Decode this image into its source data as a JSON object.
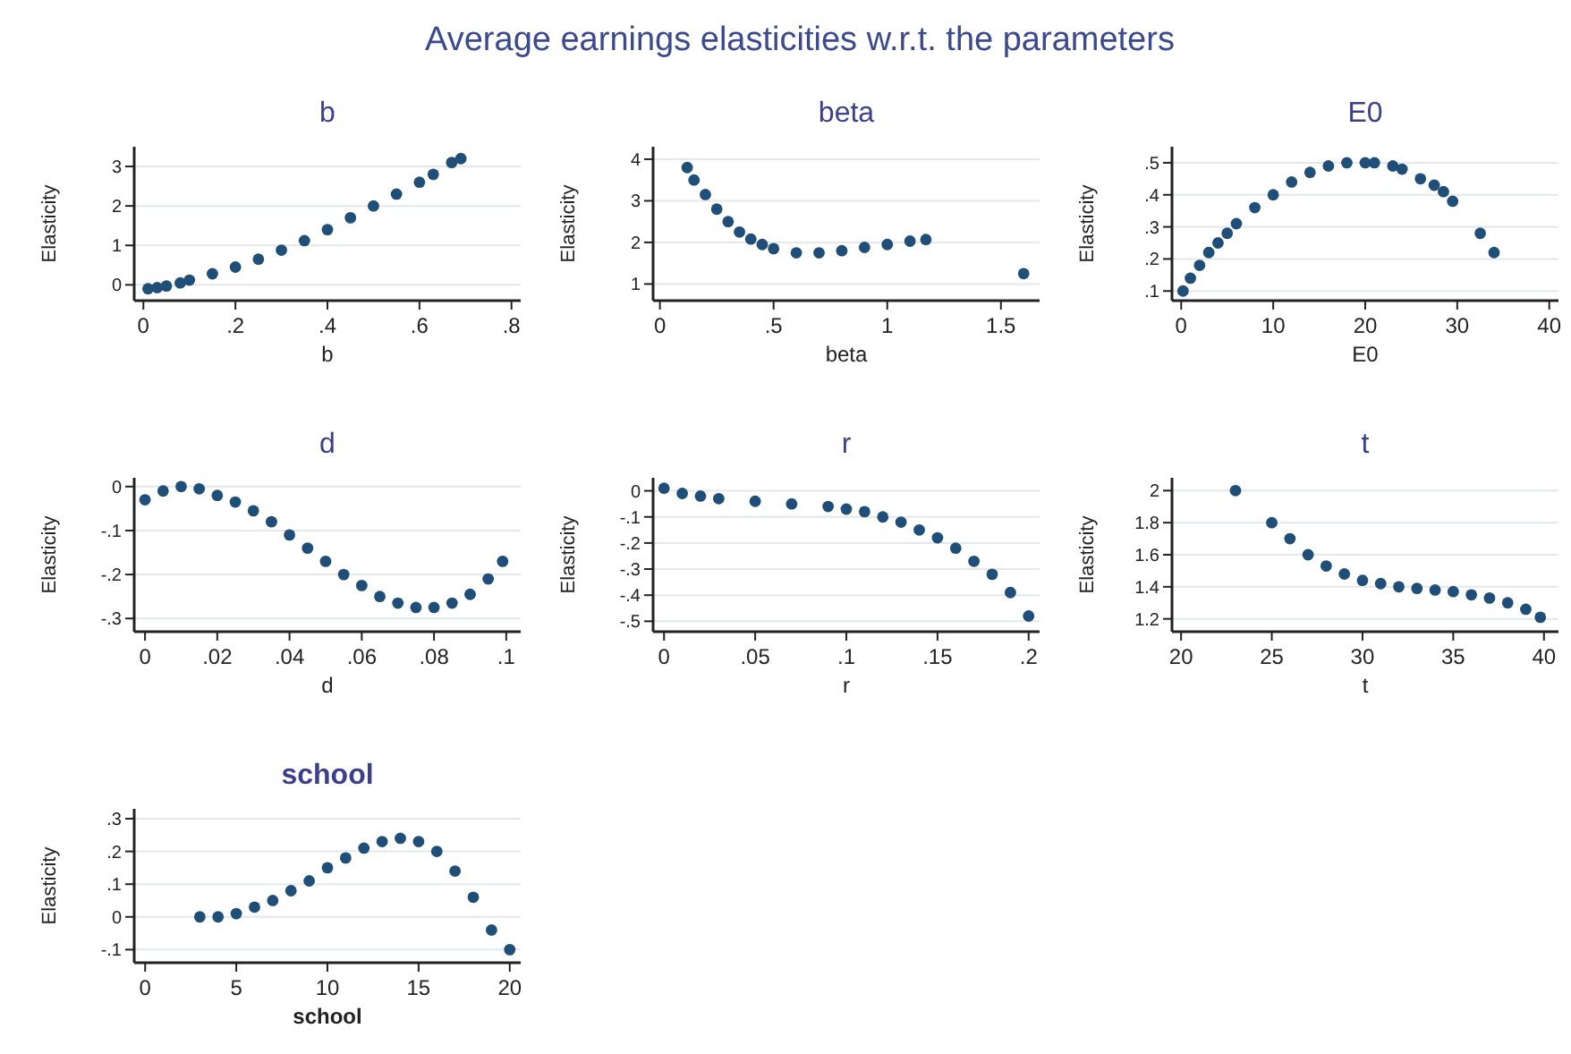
{
  "chart_data": [
    {
      "type": "scatter",
      "title": "b",
      "xlabel": "b",
      "ylabel": "Elasticity",
      "annotations": [
        "Average earnings elasticities w.r.t. the parameters"
      ],
      "marker": "circle",
      "grid": "y",
      "x": [
        0.01,
        0.03,
        0.05,
        0.08,
        0.1,
        0.15,
        0.2,
        0.25,
        0.3,
        0.35,
        0.4,
        0.45,
        0.5,
        0.55,
        0.6,
        0.63,
        0.67,
        0.69
      ],
      "series": [
        {
          "color": "#1f4e79",
          "values": [
            -0.1,
            -0.07,
            -0.03,
            0.05,
            0.12,
            0.28,
            0.45,
            0.65,
            0.88,
            1.12,
            1.4,
            1.7,
            2.0,
            2.3,
            2.6,
            2.8,
            3.1,
            3.2
          ]
        }
      ],
      "xlim": [
        -0.02,
        0.82
      ],
      "xticks": [
        0,
        {
          "value": 0.2,
          "label": ".2"
        },
        {
          "value": 0.4,
          "label": ".4"
        },
        {
          "value": 0.6,
          "label": ".6"
        },
        {
          "value": 0.8,
          "label": ".8"
        }
      ],
      "ylim": [
        -0.4,
        3.5
      ],
      "yticks": [
        0,
        1,
        2,
        3
      ]
    },
    {
      "type": "scatter",
      "title": "beta",
      "xlabel": "beta",
      "ylabel": "Elasticity",
      "marker": "circle",
      "grid": "y",
      "x": [
        0.12,
        0.15,
        0.2,
        0.25,
        0.3,
        0.35,
        0.4,
        0.45,
        0.5,
        0.6,
        0.7,
        0.8,
        0.9,
        1.0,
        1.1,
        1.17,
        1.6
      ],
      "series": [
        {
          "color": "#1f4e79",
          "values": [
            3.8,
            3.5,
            3.15,
            2.8,
            2.5,
            2.25,
            2.08,
            1.95,
            1.85,
            1.75,
            1.75,
            1.8,
            1.88,
            1.95,
            2.03,
            2.07,
            1.25
          ]
        }
      ],
      "xlim": [
        -0.03,
        1.67
      ],
      "xticks": [
        0,
        {
          "value": 0.5,
          "label": ".5"
        },
        1,
        1.5
      ],
      "ylim": [
        0.6,
        4.3
      ],
      "yticks": [
        1,
        2,
        3,
        4
      ]
    },
    {
      "type": "scatter",
      "title": "E0",
      "xlabel": "E0",
      "ylabel": "Elasticity",
      "marker": "circle",
      "grid": "y",
      "x": [
        0.2,
        1,
        2,
        3,
        4,
        5,
        6,
        8,
        10,
        12,
        14,
        16,
        18,
        20,
        21,
        23,
        24,
        26,
        27.5,
        28.5,
        29.5,
        32.5,
        34
      ],
      "series": [
        {
          "color": "#1f4e79",
          "values": [
            0.1,
            0.14,
            0.18,
            0.22,
            0.25,
            0.28,
            0.31,
            0.36,
            0.4,
            0.44,
            0.47,
            0.49,
            0.5,
            0.5,
            0.5,
            0.49,
            0.48,
            0.45,
            0.43,
            0.41,
            0.38,
            0.28,
            0.22
          ]
        }
      ],
      "xlim": [
        -1,
        41
      ],
      "xticks": [
        0,
        10,
        20,
        30,
        40
      ],
      "ylim": [
        0.07,
        0.55
      ],
      "yticks": [
        {
          "value": 0.1,
          "label": ".1"
        },
        {
          "value": 0.2,
          "label": ".2"
        },
        {
          "value": 0.3,
          "label": ".3"
        },
        {
          "value": 0.4,
          "label": ".4"
        },
        {
          "value": 0.5,
          "label": ".5"
        }
      ]
    },
    {
      "type": "scatter",
      "title": "d",
      "xlabel": "d",
      "ylabel": "Elasticity",
      "marker": "circle",
      "grid": "y",
      "x": [
        0,
        0.005,
        0.01,
        0.015,
        0.02,
        0.025,
        0.03,
        0.035,
        0.04,
        0.045,
        0.05,
        0.055,
        0.06,
        0.065,
        0.07,
        0.075,
        0.08,
        0.085,
        0.09,
        0.095,
        0.099
      ],
      "series": [
        {
          "color": "#1f4e79",
          "values": [
            -0.03,
            -0.01,
            0,
            -0.005,
            -0.02,
            -0.035,
            -0.055,
            -0.08,
            -0.11,
            -0.14,
            -0.17,
            -0.2,
            -0.225,
            -0.25,
            -0.265,
            -0.275,
            -0.275,
            -0.265,
            -0.245,
            -0.21,
            -0.17
          ]
        }
      ],
      "xlim": [
        -0.003,
        0.104
      ],
      "xticks": [
        0,
        {
          "value": 0.02,
          "label": ".02"
        },
        {
          "value": 0.04,
          "label": ".04"
        },
        {
          "value": 0.06,
          "label": ".06"
        },
        {
          "value": 0.08,
          "label": ".08"
        },
        {
          "value": 0.1,
          "label": ".1"
        }
      ],
      "ylim": [
        -0.33,
        0.02
      ],
      "yticks": [
        {
          "value": -0.3,
          "label": "-.3"
        },
        {
          "value": -0.2,
          "label": "-.2"
        },
        {
          "value": -0.1,
          "label": "-.1"
        },
        0
      ]
    },
    {
      "type": "scatter",
      "title": "r",
      "xlabel": "r",
      "ylabel": "Elasticity",
      "marker": "circle",
      "grid": "y",
      "x": [
        0,
        0.01,
        0.02,
        0.03,
        0.05,
        0.07,
        0.09,
        0.1,
        0.11,
        0.12,
        0.13,
        0.14,
        0.15,
        0.16,
        0.17,
        0.18,
        0.19,
        0.2
      ],
      "series": [
        {
          "color": "#1f4e79",
          "values": [
            0.01,
            -0.01,
            -0.02,
            -0.03,
            -0.04,
            -0.05,
            -0.06,
            -0.07,
            -0.08,
            -0.1,
            -0.12,
            -0.15,
            -0.18,
            -0.22,
            -0.27,
            -0.32,
            -0.39,
            -0.48
          ]
        }
      ],
      "xlim": [
        -0.006,
        0.206
      ],
      "xticks": [
        0,
        {
          "value": 0.05,
          "label": ".05"
        },
        {
          "value": 0.1,
          "label": ".1"
        },
        {
          "value": 0.15,
          "label": ".15"
        },
        {
          "value": 0.2,
          "label": ".2"
        }
      ],
      "ylim": [
        -0.54,
        0.05
      ],
      "yticks": [
        {
          "value": -0.5,
          "label": "-.5"
        },
        {
          "value": -0.4,
          "label": "-.4"
        },
        {
          "value": -0.3,
          "label": "-.3"
        },
        {
          "value": -0.2,
          "label": "-.2"
        },
        {
          "value": -0.1,
          "label": "-.1"
        },
        0
      ]
    },
    {
      "type": "scatter",
      "title": "t",
      "xlabel": "t",
      "ylabel": "Elasticity",
      "marker": "circle",
      "grid": "y",
      "x": [
        23,
        25,
        26,
        27,
        28,
        29,
        30,
        31,
        32,
        33,
        34,
        35,
        36,
        37,
        38,
        39,
        39.8
      ],
      "series": [
        {
          "color": "#1f4e79",
          "values": [
            2.0,
            1.8,
            1.7,
            1.6,
            1.53,
            1.48,
            1.44,
            1.42,
            1.4,
            1.39,
            1.38,
            1.37,
            1.35,
            1.33,
            1.3,
            1.26,
            1.21
          ]
        }
      ],
      "xlim": [
        19.5,
        40.8
      ],
      "xticks": [
        20,
        25,
        30,
        35,
        40
      ],
      "ylim": [
        1.12,
        2.08
      ],
      "yticks": [
        1.2,
        1.4,
        1.6,
        1.8,
        2
      ]
    },
    {
      "type": "scatter",
      "title": "school",
      "xlabel": "school",
      "ylabel": "Elasticity",
      "marker": "circle",
      "grid": "y",
      "x": [
        3,
        4,
        5,
        6,
        7,
        8,
        9,
        10,
        11,
        12,
        13,
        14,
        15,
        16,
        17,
        18,
        19,
        20
      ],
      "series": [
        {
          "color": "#1f4e79",
          "values": [
            0,
            0,
            0.01,
            0.03,
            0.05,
            0.08,
            0.11,
            0.15,
            0.18,
            0.21,
            0.23,
            0.24,
            0.23,
            0.2,
            0.14,
            0.06,
            -0.04,
            -0.1
          ]
        }
      ],
      "xlim": [
        -0.6,
        20.6
      ],
      "xticks": [
        0,
        5,
        10,
        15,
        20
      ],
      "ylim": [
        -0.14,
        0.33
      ],
      "yticks": [
        {
          "value": -0.1,
          "label": "-.1"
        },
        0,
        {
          "value": 0.1,
          "label": ".1"
        },
        {
          "value": 0.2,
          "label": ".2"
        },
        {
          "value": 0.3,
          "label": ".3"
        }
      ]
    }
  ]
}
